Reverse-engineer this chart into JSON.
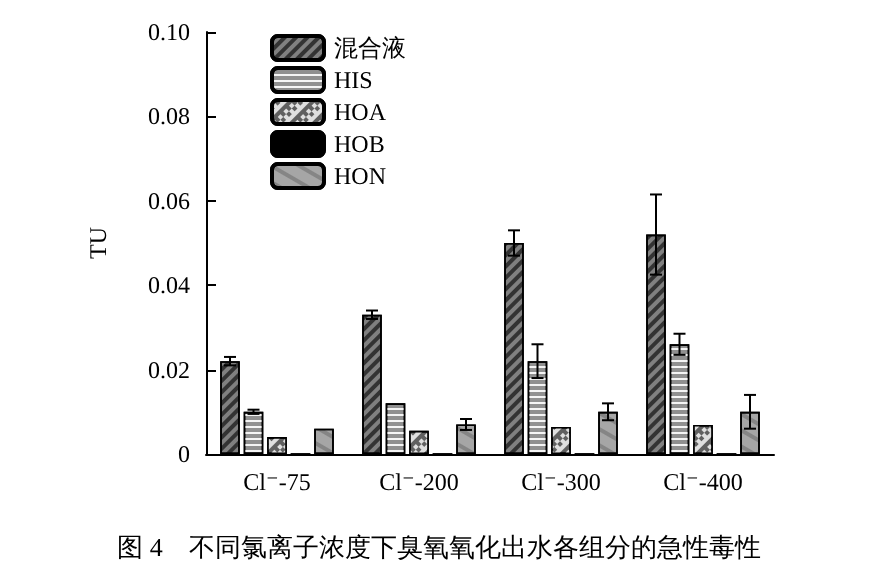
{
  "chart_data": {
    "type": "bar",
    "title": "图 4　不同氯离子浓度下臭氧氧化出水各组分的急性毒性",
    "ylabel": "TU",
    "categories": [
      "Cl⁻-75",
      "Cl⁻-200",
      "Cl⁻-300",
      "Cl⁻-400"
    ],
    "series": [
      {
        "name": "混合液",
        "color": "#808080",
        "values": [
          0.022,
          0.033,
          0.05,
          0.052
        ],
        "errors": [
          0.001,
          0.001,
          0.003,
          0.0095
        ]
      },
      {
        "name": "HIS",
        "color": "#909090",
        "values": [
          0.01,
          0.012,
          0.022,
          0.026
        ],
        "errors": [
          0.0005,
          null,
          0.004,
          0.0025
        ]
      },
      {
        "name": "HOA",
        "color": "#606060",
        "values": [
          0.004,
          0.0055,
          0.0064,
          0.0069
        ]
      },
      {
        "name": "HOB",
        "color": "#000000",
        "values": [
          0,
          0,
          0,
          0
        ]
      },
      {
        "name": "HON",
        "color": "#a6a6a6",
        "values": [
          0.006,
          0.007,
          0.01,
          0.01
        ],
        "errors": [
          null,
          0.0013,
          0.002,
          0.004
        ]
      }
    ],
    "ylim": [
      0,
      0.1
    ],
    "yticks": [
      0,
      0.02,
      0.04,
      0.06,
      0.08,
      {
        "value": 0.1,
        "label": "0.10"
      }
    ],
    "grid": false,
    "legend": "top left"
  }
}
